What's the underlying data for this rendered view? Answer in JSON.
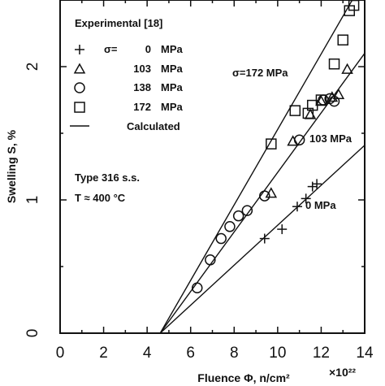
{
  "chart_data": {
    "type": "scatter",
    "title": "",
    "xlabel": "Fluence Φ, n/cm²",
    "x_multiplier": "×10²²",
    "ylabel": "Swelling S, %",
    "xlim": [
      0,
      14
    ],
    "ylim": [
      0,
      2.5
    ],
    "x_ticks": [
      "0",
      "2",
      "4",
      "6",
      "8",
      "10",
      "12",
      "14"
    ],
    "y_ticks": [
      "0",
      "1",
      "2"
    ],
    "legend": {
      "heading": "Experimental [18]",
      "sigma_label": "σ=",
      "entries": [
        {
          "marker": "plus",
          "label": "0",
          "unit": "MPa"
        },
        {
          "marker": "triangle",
          "label": "103",
          "unit": "MPa"
        },
        {
          "marker": "circle",
          "label": "138",
          "unit": "MPa"
        },
        {
          "marker": "square",
          "label": "172",
          "unit": "MPa"
        },
        {
          "marker": "line",
          "label": "Calculated"
        }
      ],
      "placement": "top-left"
    },
    "annotations": {
      "material": "Type 316 s.s.",
      "temperature": "T ≈ 400 °C",
      "line_172": "σ=172 MPa",
      "line_103": "103 MPa",
      "line_0": "0 MPa"
    },
    "series": [
      {
        "name": "0 MPa",
        "marker": "plus",
        "points": [
          [
            9.4,
            0.71
          ],
          [
            10.2,
            0.78
          ],
          [
            10.9,
            0.95
          ],
          [
            11.3,
            1.01
          ],
          [
            11.6,
            1.1
          ],
          [
            11.8,
            1.12
          ]
        ]
      },
      {
        "name": "103 MPa",
        "marker": "triangle",
        "points": [
          [
            9.7,
            1.05
          ],
          [
            10.7,
            1.44
          ],
          [
            11.5,
            1.64
          ],
          [
            12.0,
            1.74
          ],
          [
            12.5,
            1.77
          ],
          [
            12.8,
            1.79
          ],
          [
            13.2,
            1.98
          ]
        ]
      },
      {
        "name": "138 MPa",
        "marker": "circle",
        "points": [
          [
            6.3,
            0.34
          ],
          [
            6.9,
            0.55
          ],
          [
            7.4,
            0.71
          ],
          [
            7.8,
            0.8
          ],
          [
            8.2,
            0.88
          ],
          [
            8.6,
            0.92
          ],
          [
            9.4,
            1.03
          ],
          [
            11.0,
            1.45
          ],
          [
            12.1,
            1.75
          ],
          [
            12.4,
            1.76
          ],
          [
            12.6,
            1.74
          ]
        ]
      },
      {
        "name": "172 MPa",
        "marker": "square",
        "points": [
          [
            9.7,
            1.42
          ],
          [
            10.8,
            1.67
          ],
          [
            11.4,
            1.65
          ],
          [
            11.6,
            1.71
          ],
          [
            12.0,
            1.75
          ],
          [
            12.6,
            2.02
          ],
          [
            13.0,
            2.2
          ],
          [
            13.3,
            2.42
          ],
          [
            13.5,
            2.46
          ]
        ]
      }
    ],
    "calculated_lines": [
      {
        "name": "172 MPa",
        "from": [
          4.6,
          0
        ],
        "to": [
          13.5,
          2.52
        ]
      },
      {
        "name": "103 MPa",
        "from": [
          4.6,
          0
        ],
        "to": [
          14,
          2.1
        ]
      },
      {
        "name": "0 MPa",
        "from": [
          4.6,
          0
        ],
        "to": [
          14,
          1.41
        ]
      }
    ]
  }
}
